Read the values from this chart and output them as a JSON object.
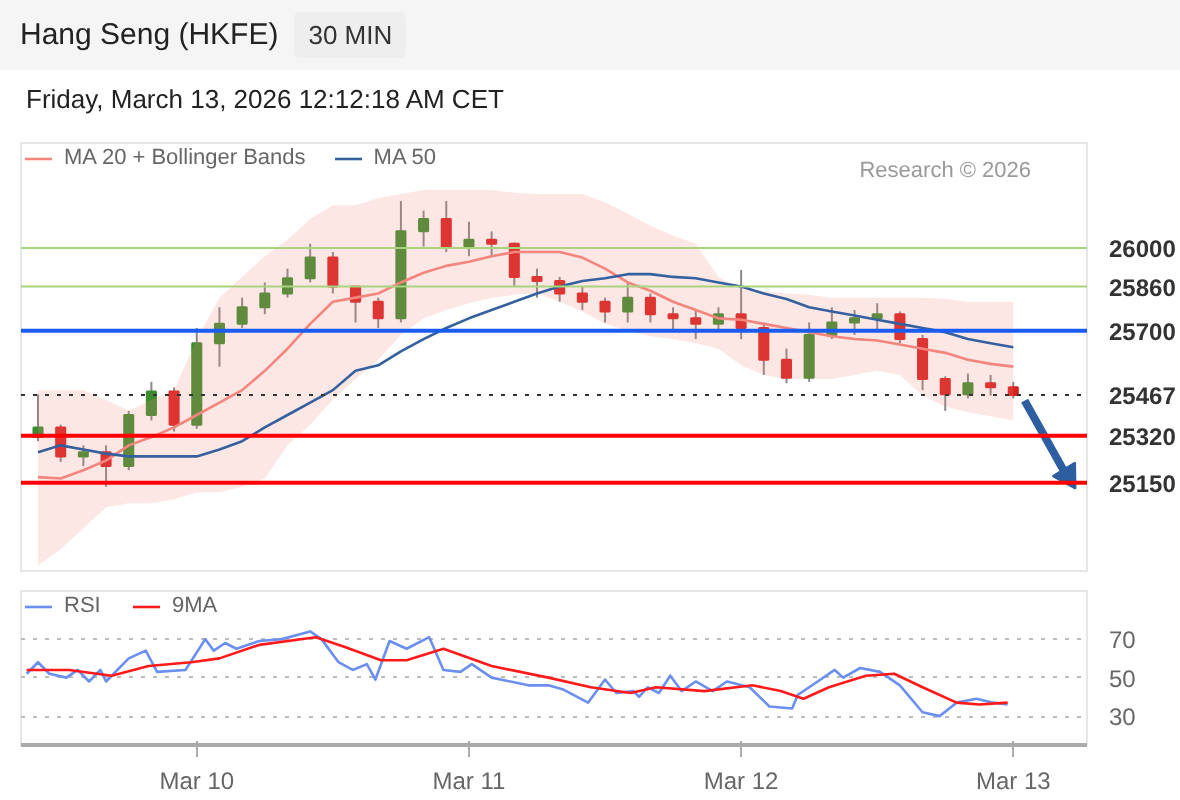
{
  "chart_data": [
    {
      "type": "candlestick",
      "title": "Hang Seng (HKFE)",
      "subtitle": "Friday, March 13, 2026 12:12:18 AM CET",
      "annotations": [
        "30 MIN",
        "Research © 2026"
      ],
      "x": [
        "2026-03-09T10:00",
        "2026-03-09T12:00",
        "2026-03-09T14:00",
        "2026-03-09T16:00",
        "2026-03-09T18:00",
        "2026-03-09T20:00",
        "2026-03-09T22:00",
        "2026-03-10T00:00",
        "2026-03-10T02:00",
        "2026-03-10T04:00",
        "2026-03-10T06:00",
        "2026-03-10T08:00",
        "2026-03-10T10:00",
        "2026-03-10T12:00",
        "2026-03-10T14:00",
        "2026-03-10T16:00",
        "2026-03-10T18:00",
        "2026-03-10T20:00",
        "2026-03-10T22:00",
        "2026-03-11T00:00",
        "2026-03-11T02:00",
        "2026-03-11T04:00",
        "2026-03-11T06:00",
        "2026-03-11T08:00",
        "2026-03-11T10:00",
        "2026-03-11T12:00",
        "2026-03-11T14:00",
        "2026-03-11T16:00",
        "2026-03-11T18:00",
        "2026-03-11T20:00",
        "2026-03-11T22:00",
        "2026-03-12T00:00",
        "2026-03-12T02:00",
        "2026-03-12T04:00",
        "2026-03-12T06:00",
        "2026-03-12T08:00",
        "2026-03-12T10:00",
        "2026-03-12T12:00",
        "2026-03-12T14:00",
        "2026-03-12T16:00",
        "2026-03-12T18:00",
        "2026-03-12T20:00",
        "2026-03-12T22:00",
        "2026-03-13T00:00"
      ],
      "ohlc": [
        [
          25315,
          25470,
          25300,
          25350
        ],
        [
          25350,
          25360,
          25225,
          25245
        ],
        [
          25245,
          25285,
          25210,
          25260
        ],
        [
          25260,
          25285,
          25135,
          25210
        ],
        [
          25210,
          25410,
          25195,
          25395
        ],
        [
          25395,
          25515,
          25375,
          25480
        ],
        [
          25480,
          25495,
          25335,
          25360
        ],
        [
          25360,
          25710,
          25345,
          25655
        ],
        [
          25655,
          25785,
          25570,
          25725
        ],
        [
          25725,
          25820,
          25710,
          25785
        ],
        [
          25785,
          25875,
          25760,
          25835
        ],
        [
          25835,
          25925,
          25820,
          25890
        ],
        [
          25890,
          26015,
          25875,
          25965
        ],
        [
          25965,
          25985,
          25835,
          25860
        ],
        [
          25860,
          25860,
          25730,
          25805
        ],
        [
          25805,
          25820,
          25710,
          25745
        ],
        [
          25745,
          26170,
          25730,
          26060
        ],
        [
          26060,
          26135,
          26005,
          26105
        ],
        [
          26105,
          26170,
          25985,
          26005
        ],
        [
          26005,
          26095,
          25970,
          26030
        ],
        [
          26030,
          26060,
          25970,
          26015
        ],
        [
          26015,
          26020,
          25860,
          25895
        ],
        [
          25895,
          25925,
          25820,
          25880
        ],
        [
          25880,
          25895,
          25805,
          25835
        ],
        [
          25835,
          25860,
          25775,
          25805
        ],
        [
          25805,
          25820,
          25730,
          25770
        ],
        [
          25770,
          25875,
          25730,
          25820
        ],
        [
          25820,
          25835,
          25730,
          25760
        ],
        [
          25760,
          25785,
          25700,
          25745
        ],
        [
          25745,
          25775,
          25670,
          25725
        ],
        [
          25725,
          25785,
          25700,
          25760
        ],
        [
          25760,
          25920,
          25670,
          25710
        ],
        [
          25710,
          25730,
          25540,
          25595
        ],
        [
          25595,
          25635,
          25510,
          25530
        ],
        [
          25530,
          25730,
          25515,
          25685
        ],
        [
          25685,
          25785,
          25670,
          25730
        ],
        [
          25730,
          25775,
          25685,
          25745
        ],
        [
          25745,
          25800,
          25700,
          25760
        ],
        [
          25760,
          25770,
          25655,
          25670
        ],
        [
          25670,
          25685,
          25485,
          25525
        ],
        [
          25525,
          25535,
          25410,
          25470
        ],
        [
          25470,
          25545,
          25455,
          25510
        ],
        [
          25510,
          25540,
          25465,
          25495
        ],
        [
          25495,
          25515,
          25455,
          25467
        ]
      ],
      "colors": [
        "#3b8c2f",
        "#d8211f",
        "#3b8c2f",
        "#d8211f",
        "#3b8c2f",
        "#3b8c2f",
        "#d8211f",
        "#3b8c2f",
        "#3b8c2f",
        "#3b8c2f",
        "#3b8c2f",
        "#3b8c2f",
        "#3b8c2f",
        "#d8211f",
        "#d8211f",
        "#d8211f",
        "#3b8c2f",
        "#3b8c2f",
        "#d8211f",
        "#3b8c2f",
        "#d8211f",
        "#d8211f",
        "#d8211f",
        "#d8211f",
        "#d8211f",
        "#d8211f",
        "#3b8c2f",
        "#d8211f",
        "#d8211f",
        "#d8211f",
        "#3b8c2f",
        "#d8211f",
        "#d8211f",
        "#d8211f",
        "#3b8c2f",
        "#3b8c2f",
        "#3b8c2f",
        "#3b8c2f",
        "#d8211f",
        "#d8211f",
        "#d8211f",
        "#3b8c2f",
        "#d8211f",
        "#d8211f"
      ],
      "series": [
        {
          "type": "line",
          "name": "MA 20 + Bollinger Bands",
          "color": "#f4857d",
          "values": [
            25170,
            25165,
            25195,
            25230,
            25285,
            25315,
            25350,
            25395,
            25440,
            25485,
            25555,
            25635,
            25725,
            25805,
            25820,
            25835,
            25875,
            25910,
            25935,
            25950,
            25970,
            25985,
            25985,
            25985,
            25965,
            25925,
            25875,
            25845,
            25805,
            25775,
            25745,
            25740,
            25725,
            25710,
            25695,
            25680,
            25670,
            25665,
            25650,
            25635,
            25620,
            25595,
            25580,
            25570
          ],
          "lower": [
            24850,
            24910,
            24985,
            25060,
            25075,
            25075,
            25090,
            25115,
            25115,
            25135,
            25165,
            25285,
            25360,
            25450,
            25525,
            25595,
            25685,
            25745,
            25775,
            25800,
            25820,
            25830,
            25835,
            25805,
            25770,
            25725,
            25700,
            25680,
            25670,
            25655,
            25635,
            25575,
            25540,
            25525,
            25525,
            25525,
            25540,
            25555,
            25540,
            25465,
            25425,
            25405,
            25390,
            25375
          ],
          "upper": [
            25485,
            25485,
            25485,
            25450,
            25410,
            25450,
            25485,
            25670,
            25820,
            25895,
            25970,
            26030,
            26105,
            26155,
            26155,
            26180,
            26195,
            26210,
            26210,
            26210,
            26210,
            26200,
            26195,
            26195,
            26195,
            26165,
            26125,
            26080,
            26045,
            26015,
            25895,
            25850,
            25845,
            25835,
            25830,
            25820,
            25820,
            25820,
            25820,
            25820,
            25815,
            25805,
            25805,
            25805
          ]
        },
        {
          "type": "line",
          "name": "MA 50",
          "color": "#35609f",
          "values": [
            25260,
            25285,
            25270,
            25255,
            25245,
            25245,
            25245,
            25245,
            25270,
            25300,
            25350,
            25395,
            25440,
            25485,
            25555,
            25575,
            25625,
            25670,
            25710,
            25745,
            25775,
            25805,
            25835,
            25860,
            25880,
            25890,
            25905,
            25905,
            25895,
            25890,
            25875,
            25860,
            25835,
            25815,
            25785,
            25770,
            25755,
            25740,
            25725,
            25710,
            25695,
            25670,
            25655,
            25640
          ]
        }
      ],
      "ref_lines": [
        {
          "axis": "y",
          "value": 26000,
          "color": "#a8d47e",
          "line_style": "solid"
        },
        {
          "axis": "y",
          "value": 25860,
          "color": "#a8d47e",
          "line_style": "solid"
        },
        {
          "axis": "y",
          "value": 25700,
          "color": "#1a5cf0",
          "line_style": "solid"
        },
        {
          "axis": "y",
          "value": 25467,
          "color": "#333333",
          "line_style": "dotted"
        },
        {
          "axis": "y",
          "value": 25320,
          "color": "#ff0000",
          "line_style": "solid"
        },
        {
          "axis": "y",
          "value": 25150,
          "color": "#ff0000",
          "line_style": "solid"
        }
      ],
      "xlim": [
        "2026-03-09T08:30",
        "2026-03-13T06:30"
      ],
      "ylim": [
        24830,
        26380
      ],
      "yticks": [
        25150,
        25320,
        25467,
        25700,
        25860,
        26000
      ],
      "tick_labels": "y",
      "legend": "top left",
      "grid": false
    },
    {
      "type": "line",
      "series": [
        {
          "name": "RSI",
          "color": "#6b8ff0",
          "x": [
            "2026-03-09T09:00",
            "2026-03-09T10:00",
            "2026-03-09T11:00",
            "2026-03-09T12:30",
            "2026-03-09T13:30",
            "2026-03-09T14:30",
            "2026-03-09T15:30",
            "2026-03-09T16:00",
            "2026-03-09T18:00",
            "2026-03-09T19:30",
            "2026-03-09T20:30",
            "2026-03-09T23:00",
            "2026-03-10T00:45",
            "2026-03-10T01:30",
            "2026-03-10T02:30",
            "2026-03-10T03:30",
            "2026-03-10T05:30",
            "2026-03-10T07:30",
            "2026-03-10T10:00",
            "2026-03-10T11:00",
            "2026-03-10T12:30",
            "2026-03-10T13:45",
            "2026-03-10T15:00",
            "2026-03-10T15:45",
            "2026-03-10T17:00",
            "2026-03-10T18:30",
            "2026-03-10T20:30",
            "2026-03-10T21:45",
            "2026-03-10T23:15",
            "2026-03-11T00:15",
            "2026-03-11T02:00",
            "2026-03-11T05:15",
            "2026-03-11T07:00",
            "2026-03-11T08:15",
            "2026-03-11T10:30",
            "2026-03-11T12:00",
            "2026-03-11T13:00",
            "2026-03-11T14:30",
            "2026-03-11T15:00",
            "2026-03-11T15:45",
            "2026-03-11T16:45",
            "2026-03-11T17:45",
            "2026-03-11T18:45",
            "2026-03-11T20:00",
            "2026-03-11T21:30",
            "2026-03-11T22:45",
            "2026-03-12T00:45",
            "2026-03-12T02:30",
            "2026-03-12T04:30",
            "2026-03-12T05:00",
            "2026-03-12T06:45",
            "2026-03-12T08:15",
            "2026-03-12T09:00",
            "2026-03-12T10:30",
            "2026-03-12T12:15",
            "2026-03-12T14:00",
            "2026-03-12T16:00",
            "2026-03-12T17:30",
            "2026-03-12T19:00",
            "2026-03-12T20:45",
            "2026-03-12T22:15",
            "2026-03-12T23:30"
          ],
          "values": [
            52,
            58,
            52,
            50,
            54,
            48,
            54,
            48,
            60,
            64,
            53,
            54,
            70,
            64,
            68,
            65,
            69,
            70,
            74,
            70,
            58,
            54,
            57,
            49,
            69,
            65,
            71,
            54,
            53,
            57,
            50,
            46,
            46,
            44,
            37,
            49,
            42,
            43,
            40,
            45,
            42,
            51,
            43,
            48,
            43,
            48,
            45,
            35,
            34,
            41,
            48,
            54,
            50,
            55,
            53,
            46,
            32,
            30,
            37,
            39,
            37,
            36
          ]
        },
        {
          "name": "9MA",
          "color": "#ff1a1a",
          "x": [
            "2026-03-09T09:00",
            "2026-03-09T12:45",
            "2026-03-09T16:30",
            "2026-03-09T19:45",
            "2026-03-09T23:30",
            "2026-03-10T02:00",
            "2026-03-10T05:30",
            "2026-03-10T10:30",
            "2026-03-10T13:00",
            "2026-03-10T16:15",
            "2026-03-10T18:30",
            "2026-03-10T21:45",
            "2026-03-11T02:00",
            "2026-03-11T07:00",
            "2026-03-11T10:45",
            "2026-03-11T14:15",
            "2026-03-11T16:30",
            "2026-03-11T20:45",
            "2026-03-12T01:00",
            "2026-03-12T03:30",
            "2026-03-12T05:30",
            "2026-03-12T07:45",
            "2026-03-12T11:00",
            "2026-03-12T13:30",
            "2026-03-12T16:00",
            "2026-03-12T19:00",
            "2026-03-12T21:00",
            "2026-03-12T23:30"
          ],
          "values": [
            54,
            54,
            51,
            56,
            58,
            60,
            67,
            71,
            66,
            59,
            59,
            65,
            56,
            50,
            45,
            42,
            45,
            43,
            46,
            43,
            39,
            45,
            51,
            52,
            45,
            37,
            36,
            37
          ]
        }
      ],
      "xlim": [
        "2026-03-09T08:30",
        "2026-03-13T06:30"
      ],
      "ylim": [
        15,
        95
      ],
      "yticks": [
        30,
        50,
        70
      ],
      "xticks": [
        {
          "value": "2026-03-10",
          "label": "Mar 10"
        },
        {
          "value": "2026-03-11",
          "label": "Mar 11"
        },
        {
          "value": "2026-03-12",
          "label": "Mar 12"
        },
        {
          "value": "2026-03-13",
          "label": "Mar 13"
        }
      ],
      "grid": "y",
      "legend": "top left"
    }
  ]
}
